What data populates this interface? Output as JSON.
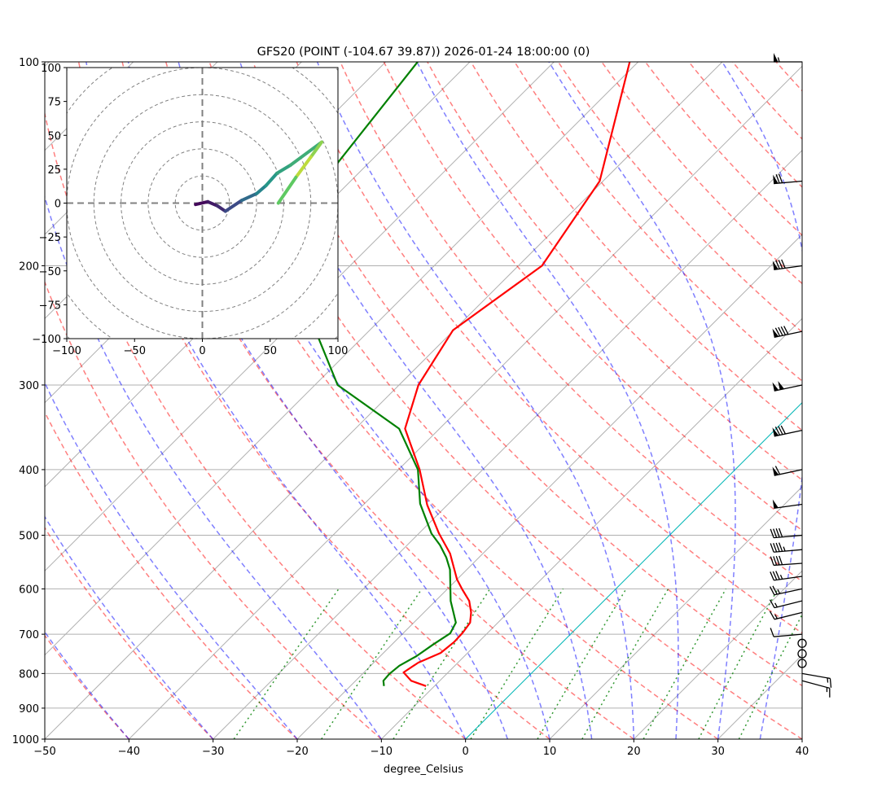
{
  "chart_data": {
    "type": "line",
    "title": "GFS20 (POINT (-104.67 39.87)) 2026-01-24 18:00:00 (0)",
    "xlabel": "degree_Celsius",
    "ylabel": "",
    "xlim": [
      -50,
      40
    ],
    "ylim": [
      1000,
      100
    ],
    "y_scale": "log",
    "x_ticks": [
      -50,
      -40,
      -30,
      -20,
      -10,
      0,
      10,
      20,
      30,
      40
    ],
    "y_ticks": [
      100,
      200,
      300,
      400,
      500,
      600,
      700,
      800,
      900,
      1000
    ],
    "grid": true,
    "series": [
      {
        "role": "temperature",
        "color": "#ff0000",
        "pressure": [
          835,
          820,
          797,
          771,
          746,
          718,
          696,
          673,
          650,
          625,
          601,
          581,
          532,
          497,
          451,
          400,
          348,
          300,
          249,
          200,
          150,
          100
        ],
        "values": [
          -11.0,
          -13.4,
          -15.3,
          -14.7,
          -13.2,
          -12.9,
          -13.0,
          -13.3,
          -14.4,
          -16.0,
          -18.2,
          -20.0,
          -23.9,
          -27.6,
          -32.4,
          -37.5,
          -44.1,
          -47.7,
          -50.1,
          -47.2,
          -50.4,
          -61.0
        ]
      },
      {
        "role": "dewpoint",
        "color": "#008000",
        "pressure": [
          835,
          820,
          801,
          779,
          754,
          725,
          698,
          673,
          650,
          625,
          601,
          562,
          539,
          517,
          497,
          449,
          400,
          348,
          300,
          255,
          141,
          100
        ],
        "values": [
          -16.0,
          -16.7,
          -16.8,
          -16.6,
          -15.7,
          -15.1,
          -14.4,
          -15.0,
          -16.5,
          -18.2,
          -19.6,
          -22.0,
          -23.9,
          -26.1,
          -28.5,
          -33.4,
          -37.7,
          -44.8,
          -57.3,
          -65.3,
          -83.7,
          -86.2
        ]
      }
    ],
    "reference_lines": {
      "isotherm_highlight": {
        "value": 0,
        "color": "#00bfbf"
      },
      "dry_adiabats": {
        "color": "#ff0000",
        "theta_c_start": -50,
        "theta_c_end": 200,
        "step": 10
      },
      "moist_adiabats": {
        "color": "#0000ff",
        "t0_c": [
          -50,
          -40,
          -30,
          -20,
          -10,
          0,
          5,
          10,
          15,
          20,
          25,
          30,
          35,
          40
        ]
      },
      "mixing_ratio": {
        "color": "#008000",
        "values": [
          0.0004,
          0.001,
          0.002,
          0.004,
          0.007,
          0.01,
          0.016,
          0.024,
          0.032
        ],
        "pressure_top": 600
      }
    },
    "wind_barbs": [
      {
        "pressure": 100,
        "speed_kt": 55,
        "direction_deg": 270
      },
      {
        "pressure": 150,
        "speed_kt": 70,
        "direction_deg": 265
      },
      {
        "pressure": 200,
        "speed_kt": 80,
        "direction_deg": 262
      },
      {
        "pressure": 250,
        "speed_kt": 90,
        "direction_deg": 258
      },
      {
        "pressure": 300,
        "speed_kt": 100,
        "direction_deg": 258
      },
      {
        "pressure": 350,
        "speed_kt": 80,
        "direction_deg": 258
      },
      {
        "pressure": 400,
        "speed_kt": 60,
        "direction_deg": 258
      },
      {
        "pressure": 450,
        "speed_kt": 50,
        "direction_deg": 262
      },
      {
        "pressure": 500,
        "speed_kt": 40,
        "direction_deg": 265
      },
      {
        "pressure": 525,
        "speed_kt": 45,
        "direction_deg": 265
      },
      {
        "pressure": 550,
        "speed_kt": 40,
        "direction_deg": 266
      },
      {
        "pressure": 575,
        "speed_kt": 35,
        "direction_deg": 262
      },
      {
        "pressure": 600,
        "speed_kt": 25,
        "direction_deg": 258
      },
      {
        "pressure": 625,
        "speed_kt": 15,
        "direction_deg": 256
      },
      {
        "pressure": 650,
        "speed_kt": 15,
        "direction_deg": 256
      },
      {
        "pressure": 700,
        "speed_kt": 10,
        "direction_deg": 265
      },
      {
        "pressure": 722,
        "speed_kt": 0,
        "direction_deg": 0
      },
      {
        "pressure": 748,
        "speed_kt": 0,
        "direction_deg": 0
      },
      {
        "pressure": 773,
        "speed_kt": 0,
        "direction_deg": 0
      },
      {
        "pressure": 800,
        "speed_kt": 15,
        "direction_deg": 100
      },
      {
        "pressure": 820,
        "speed_kt": 15,
        "direction_deg": 105
      }
    ],
    "hodograph": {
      "xlim": [
        -100,
        100
      ],
      "ylim": [
        -100,
        100
      ],
      "x_ticks": [
        -100,
        -50,
        0,
        50,
        100
      ],
      "y_ticks": [
        -100,
        -75,
        -50,
        -25,
        0,
        25,
        50,
        75,
        100
      ],
      "ring_step": 20,
      "colormap": "viridis",
      "u": [
        -5,
        4,
        11,
        17,
        29,
        40,
        47,
        55,
        65,
        88,
        80,
        69,
        56
      ],
      "v": [
        -1,
        1,
        -2,
        -6,
        2,
        7,
        13,
        22,
        28,
        45,
        34,
        19,
        0
      ],
      "colormap_value": [
        0.0,
        0.05,
        0.1,
        0.15,
        0.3,
        0.4,
        0.5,
        0.55,
        0.6,
        0.65,
        1.0,
        0.8,
        0.7
      ]
    }
  }
}
